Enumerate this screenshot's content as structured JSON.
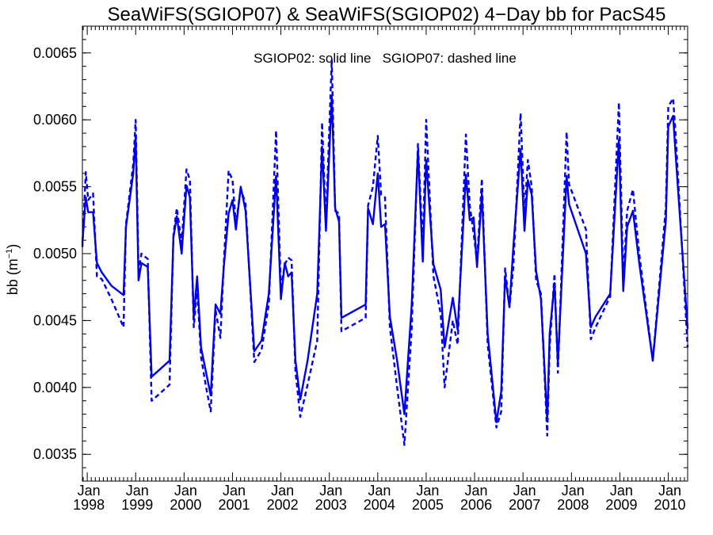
{
  "chart_data": {
    "type": "line",
    "title": "SeaWiFS(SGIOP07) & SeaWiFS(SGIOP02) 4−Day bb for PacS45",
    "annotation": "SGIOP02: solid line   SGIOP07: dashed line",
    "xlabel": "",
    "ylabel": "bb (m",
    "ylabel_superscript": "−1",
    "ylabel_suffix": ")",
    "xlim": [
      1997.9,
      2010.4
    ],
    "ylim": [
      0.0033,
      0.0067
    ],
    "y_ticks": [
      {
        "value": 0.0035,
        "label": "0.0035"
      },
      {
        "value": 0.004,
        "label": "0.0040"
      },
      {
        "value": 0.0045,
        "label": "0.0045"
      },
      {
        "value": 0.005,
        "label": "0.0050"
      },
      {
        "value": 0.0055,
        "label": "0.0055"
      },
      {
        "value": 0.006,
        "label": "0.0060"
      },
      {
        "value": 0.0065,
        "label": "0.0065"
      }
    ],
    "x_ticks": [
      {
        "value": 1998,
        "month": "Jan",
        "year": "1998"
      },
      {
        "value": 1999,
        "month": "Jan",
        "year": "1999"
      },
      {
        "value": 2000,
        "month": "Jan",
        "year": "2000"
      },
      {
        "value": 2001,
        "month": "Jan",
        "year": "2001"
      },
      {
        "value": 2002,
        "month": "Jan",
        "year": "2002"
      },
      {
        "value": 2003,
        "month": "Jan",
        "year": "2003"
      },
      {
        "value": 2004,
        "month": "Jan",
        "year": "2004"
      },
      {
        "value": 2005,
        "month": "Jan",
        "year": "2005"
      },
      {
        "value": 2006,
        "month": "Jan",
        "year": "2006"
      },
      {
        "value": 2007,
        "month": "Jan",
        "year": "2007"
      },
      {
        "value": 2008,
        "month": "Jan",
        "year": "2008"
      },
      {
        "value": 2009,
        "month": "Jan",
        "year": "2009"
      },
      {
        "value": 2010,
        "month": "Jan",
        "year": "2010"
      }
    ],
    "line_color": "#0000ee",
    "series": [
      {
        "name": "SGIOP02",
        "style": "solid",
        "points": [
          [
            1997.9,
            0.00508
          ],
          [
            1997.97,
            0.00542
          ],
          [
            1998.02,
            0.00531
          ],
          [
            1998.12,
            0.00531
          ],
          [
            1998.2,
            0.00493
          ],
          [
            1998.3,
            0.00486
          ],
          [
            1998.5,
            0.00476
          ],
          [
            1998.75,
            0.00469
          ],
          [
            1998.8,
            0.0052
          ],
          [
            1998.95,
            0.0056
          ],
          [
            1999.0,
            0.00587
          ],
          [
            1999.06,
            0.0048
          ],
          [
            1999.12,
            0.00493
          ],
          [
            1999.25,
            0.0049
          ],
          [
            1999.33,
            0.00408
          ],
          [
            1999.7,
            0.0042
          ],
          [
            1999.78,
            0.00512
          ],
          [
            1999.85,
            0.00528
          ],
          [
            1999.95,
            0.005
          ],
          [
            2000.05,
            0.00551
          ],
          [
            2000.12,
            0.00542
          ],
          [
            2000.2,
            0.00452
          ],
          [
            2000.27,
            0.00483
          ],
          [
            2000.35,
            0.0043
          ],
          [
            2000.45,
            0.00412
          ],
          [
            2000.55,
            0.00394
          ],
          [
            2000.65,
            0.00462
          ],
          [
            2000.75,
            0.00455
          ],
          [
            2000.82,
            0.0049
          ],
          [
            2000.92,
            0.0053
          ],
          [
            2001.0,
            0.0054
          ],
          [
            2001.07,
            0.00518
          ],
          [
            2001.17,
            0.0055
          ],
          [
            2001.27,
            0.00532
          ],
          [
            2001.45,
            0.00427
          ],
          [
            2001.6,
            0.00435
          ],
          [
            2001.75,
            0.0047
          ],
          [
            2001.9,
            0.00558
          ],
          [
            2002.0,
            0.00466
          ],
          [
            2002.08,
            0.00493
          ],
          [
            2002.15,
            0.00483
          ],
          [
            2002.22,
            0.00486
          ],
          [
            2002.3,
            0.0042
          ],
          [
            2002.4,
            0.00391
          ],
          [
            2002.55,
            0.0042
          ],
          [
            2002.75,
            0.0047
          ],
          [
            2002.85,
            0.0058
          ],
          [
            2002.93,
            0.00517
          ],
          [
            2003.05,
            0.00618
          ],
          [
            2003.12,
            0.00534
          ],
          [
            2003.2,
            0.00524
          ],
          [
            2003.25,
            0.00452
          ],
          [
            2003.75,
            0.00462
          ],
          [
            2003.8,
            0.00534
          ],
          [
            2003.9,
            0.00522
          ],
          [
            2004.0,
            0.0056
          ],
          [
            2004.07,
            0.0052
          ],
          [
            2004.15,
            0.00522
          ],
          [
            2004.25,
            0.00453
          ],
          [
            2004.4,
            0.0042
          ],
          [
            2004.55,
            0.0038
          ],
          [
            2004.7,
            0.00461
          ],
          [
            2004.83,
            0.00577
          ],
          [
            2004.93,
            0.00494
          ],
          [
            2005.0,
            0.0057
          ],
          [
            2005.15,
            0.00492
          ],
          [
            2005.3,
            0.00473
          ],
          [
            2005.38,
            0.0043
          ],
          [
            2005.55,
            0.00467
          ],
          [
            2005.65,
            0.00443
          ],
          [
            2005.82,
            0.00559
          ],
          [
            2005.9,
            0.00525
          ],
          [
            2005.98,
            0.00527
          ],
          [
            2006.05,
            0.0049
          ],
          [
            2006.15,
            0.00545
          ],
          [
            2006.27,
            0.0044
          ],
          [
            2006.45,
            0.00374
          ],
          [
            2006.55,
            0.00397
          ],
          [
            2006.63,
            0.00483
          ],
          [
            2006.72,
            0.0046
          ],
          [
            2006.8,
            0.00505
          ],
          [
            2006.95,
            0.00578
          ],
          [
            2007.03,
            0.00517
          ],
          [
            2007.1,
            0.00555
          ],
          [
            2007.18,
            0.00544
          ],
          [
            2007.27,
            0.00487
          ],
          [
            2007.37,
            0.00466
          ],
          [
            2007.5,
            0.00375
          ],
          [
            2007.55,
            0.0044
          ],
          [
            2007.65,
            0.00478
          ],
          [
            2007.72,
            0.00418
          ],
          [
            2007.9,
            0.00558
          ],
          [
            2007.95,
            0.00537
          ],
          [
            2008.3,
            0.005
          ],
          [
            2008.4,
            0.00445
          ],
          [
            2008.5,
            0.00453
          ],
          [
            2008.8,
            0.0047
          ],
          [
            2008.98,
            0.00585
          ],
          [
            2009.07,
            0.00472
          ],
          [
            2009.15,
            0.0052
          ],
          [
            2009.27,
            0.00532
          ],
          [
            2009.4,
            0.00493
          ],
          [
            2009.68,
            0.0042
          ],
          [
            2009.95,
            0.00525
          ],
          [
            2010.0,
            0.00595
          ],
          [
            2010.1,
            0.00603
          ],
          [
            2010.15,
            0.00575
          ],
          [
            2010.4,
            0.00444
          ]
        ]
      },
      {
        "name": "SGIOP07",
        "style": "dashed",
        "points": [
          [
            1997.9,
            0.00505
          ],
          [
            1997.97,
            0.00561
          ],
          [
            1998.02,
            0.0054
          ],
          [
            1998.12,
            0.00545
          ],
          [
            1998.2,
            0.00483
          ],
          [
            1998.3,
            0.00481
          ],
          [
            1998.5,
            0.00466
          ],
          [
            1998.75,
            0.00445
          ],
          [
            1998.8,
            0.00522
          ],
          [
            1998.95,
            0.00567
          ],
          [
            1999.0,
            0.006
          ],
          [
            1999.06,
            0.00487
          ],
          [
            1999.12,
            0.005
          ],
          [
            1999.25,
            0.00496
          ],
          [
            1999.33,
            0.0039
          ],
          [
            1999.7,
            0.00402
          ],
          [
            1999.78,
            0.00514
          ],
          [
            1999.85,
            0.00534
          ],
          [
            1999.95,
            0.00508
          ],
          [
            2000.05,
            0.00563
          ],
          [
            2000.12,
            0.00555
          ],
          [
            2000.2,
            0.00445
          ],
          [
            2000.27,
            0.00474
          ],
          [
            2000.35,
            0.00423
          ],
          [
            2000.45,
            0.00401
          ],
          [
            2000.55,
            0.00382
          ],
          [
            2000.65,
            0.00458
          ],
          [
            2000.75,
            0.00437
          ],
          [
            2000.82,
            0.00492
          ],
          [
            2000.92,
            0.00562
          ],
          [
            2001.0,
            0.00555
          ],
          [
            2001.07,
            0.00522
          ],
          [
            2001.17,
            0.00549
          ],
          [
            2001.27,
            0.00537
          ],
          [
            2001.45,
            0.00419
          ],
          [
            2001.6,
            0.00428
          ],
          [
            2001.75,
            0.00462
          ],
          [
            2001.9,
            0.00592
          ],
          [
            2002.0,
            0.00473
          ],
          [
            2002.08,
            0.00492
          ],
          [
            2002.15,
            0.00497
          ],
          [
            2002.22,
            0.00495
          ],
          [
            2002.3,
            0.00412
          ],
          [
            2002.4,
            0.00378
          ],
          [
            2002.55,
            0.00402
          ],
          [
            2002.75,
            0.00435
          ],
          [
            2002.85,
            0.00598
          ],
          [
            2002.93,
            0.00523
          ],
          [
            2003.05,
            0.00645
          ],
          [
            2003.12,
            0.00532
          ],
          [
            2003.2,
            0.0053
          ],
          [
            2003.25,
            0.00442
          ],
          [
            2003.75,
            0.00452
          ],
          [
            2003.8,
            0.00536
          ],
          [
            2003.9,
            0.0055
          ],
          [
            2004.0,
            0.00588
          ],
          [
            2004.07,
            0.00544
          ],
          [
            2004.15,
            0.00542
          ],
          [
            2004.25,
            0.00445
          ],
          [
            2004.4,
            0.004
          ],
          [
            2004.55,
            0.00357
          ],
          [
            2004.7,
            0.00443
          ],
          [
            2004.83,
            0.00582
          ],
          [
            2004.93,
            0.00506
          ],
          [
            2005.0,
            0.006
          ],
          [
            2005.15,
            0.00483
          ],
          [
            2005.3,
            0.00455
          ],
          [
            2005.38,
            0.004
          ],
          [
            2005.55,
            0.0045
          ],
          [
            2005.65,
            0.00432
          ],
          [
            2005.82,
            0.00589
          ],
          [
            2005.9,
            0.00536
          ],
          [
            2005.98,
            0.00515
          ],
          [
            2006.05,
            0.00494
          ],
          [
            2006.15,
            0.00556
          ],
          [
            2006.27,
            0.00432
          ],
          [
            2006.45,
            0.0037
          ],
          [
            2006.55,
            0.00382
          ],
          [
            2006.63,
            0.00489
          ],
          [
            2006.72,
            0.0046
          ],
          [
            2006.8,
            0.0049
          ],
          [
            2006.95,
            0.00605
          ],
          [
            2007.03,
            0.0053
          ],
          [
            2007.1,
            0.0057
          ],
          [
            2007.18,
            0.0055
          ],
          [
            2007.27,
            0.0048
          ],
          [
            2007.37,
            0.0047
          ],
          [
            2007.5,
            0.00364
          ],
          [
            2007.55,
            0.0043
          ],
          [
            2007.65,
            0.00485
          ],
          [
            2007.72,
            0.00411
          ],
          [
            2007.9,
            0.00591
          ],
          [
            2007.95,
            0.00552
          ],
          [
            2008.3,
            0.00518
          ],
          [
            2008.4,
            0.00436
          ],
          [
            2008.5,
            0.00445
          ],
          [
            2008.8,
            0.00468
          ],
          [
            2008.98,
            0.00613
          ],
          [
            2009.07,
            0.0048
          ],
          [
            2009.15,
            0.00532
          ],
          [
            2009.27,
            0.00548
          ],
          [
            2009.4,
            0.005
          ],
          [
            2009.68,
            0.0042
          ],
          [
            2009.95,
            0.00535
          ],
          [
            2010.0,
            0.0061
          ],
          [
            2010.1,
            0.00616
          ],
          [
            2010.15,
            0.0059
          ],
          [
            2010.4,
            0.0043
          ]
        ]
      }
    ]
  }
}
